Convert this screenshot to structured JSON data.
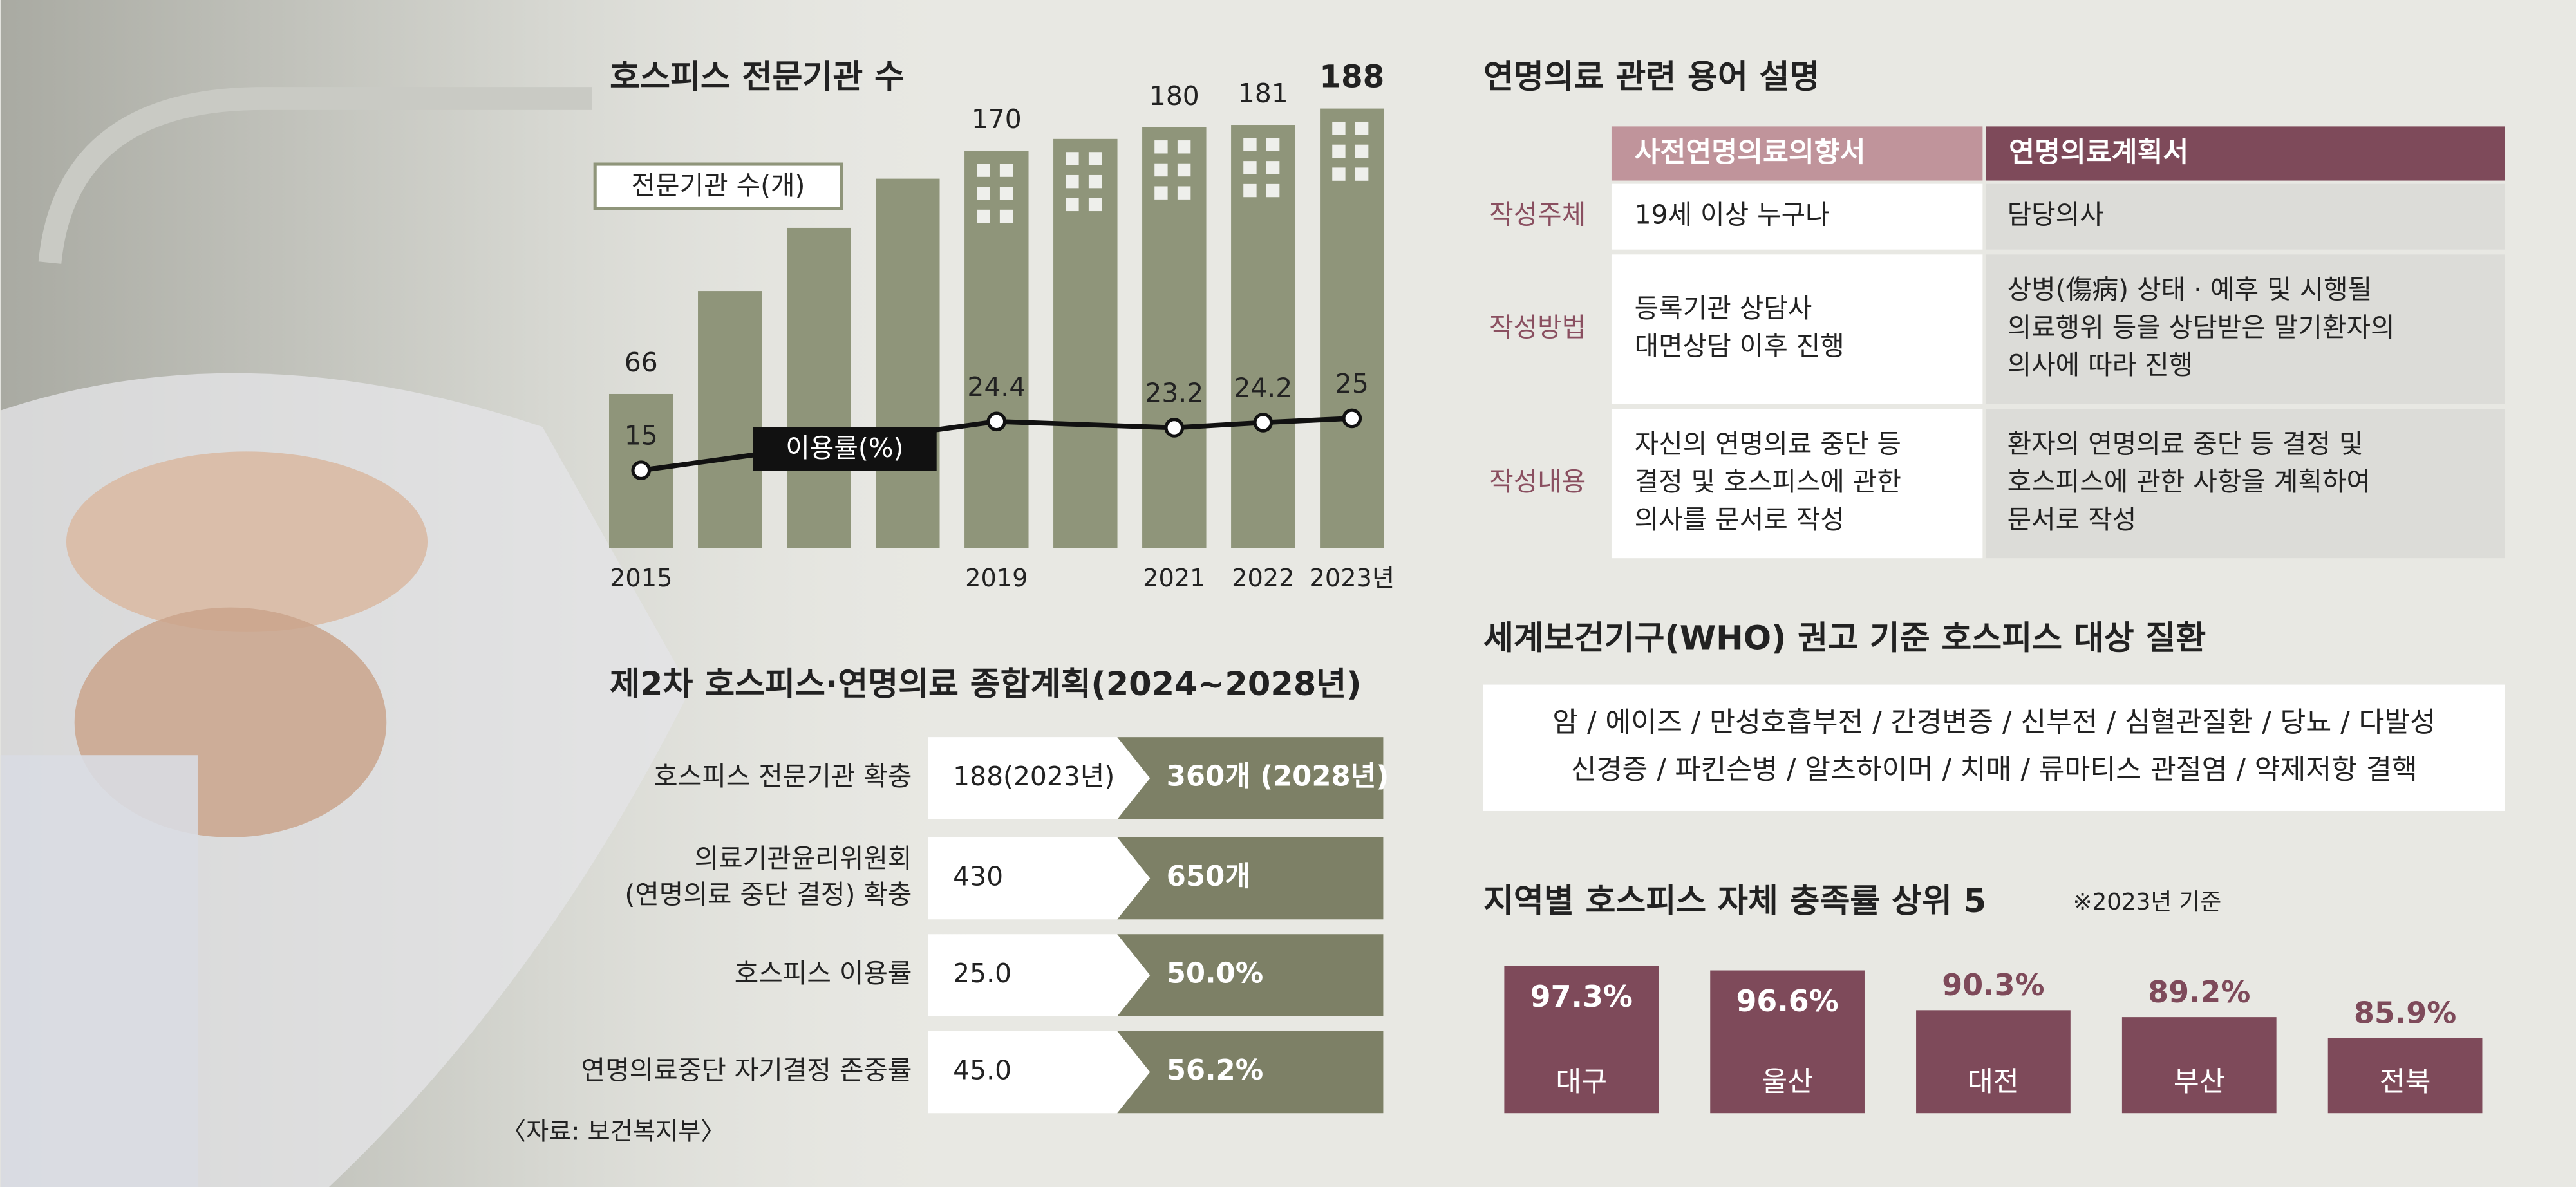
{
  "chart_data": [
    {
      "type": "bar",
      "title": "호스피스 전문기관 수",
      "x": [
        2015,
        2016,
        2017,
        2018,
        2019,
        2020,
        2021,
        2022,
        2023
      ],
      "xlim": [
        2014.5,
        2023.5
      ],
      "xticks": [
        2015,
        2019,
        2021,
        2022,
        {
          "value": 2023,
          "label": "2023년"
        }
      ],
      "ylim": [
        0,
        200
      ],
      "y2lim": [
        0,
        90
      ],
      "series": [
        {
          "name": "전문기관 수(개)",
          "color": "#8f957a",
          "values": [
            66,
            110,
            137,
            158,
            170,
            175,
            180,
            181,
            188
          ],
          "value_labels": [
            "66",
            null,
            null,
            null,
            "170",
            null,
            "180",
            "181",
            "188"
          ]
        },
        {
          "name": "이용률(%)",
          "type": "line",
          "axis": "y2",
          "color": "#111111",
          "x": [
            2015,
            2019,
            2021,
            2022,
            2023
          ],
          "values": [
            15,
            24.4,
            23.2,
            24.2,
            25
          ]
        }
      ]
    },
    {
      "type": "bar",
      "title": "지역별 호스피스 자체 충족률 상위 5",
      "subtitle": "※2023년 기준",
      "categories": [
        "대구",
        "울산",
        "대전",
        "부산",
        "전북"
      ],
      "values": [
        97.3,
        96.6,
        90.3,
        89.2,
        85.9
      ],
      "value_labels": [
        "97.3%",
        "96.6%",
        "90.3%",
        "89.2%",
        "85.9%"
      ],
      "color": "#7e4a5a",
      "ylim": [
        74,
        100
      ]
    }
  ],
  "plan": {
    "title": "제2차 호스피스·연명의료 종합계획(2024~2028년)",
    "rows": [
      [
        [
          "호스피스 전문기관 확충"
        ],
        "188(2023년)",
        "360개 (2028년)"
      ],
      [
        [
          "의료기관윤리위원회",
          "(연명의료 중단 결정) 확충"
        ],
        "430",
        "650개"
      ],
      [
        [
          "호스피스 이용률"
        ],
        "25.0",
        "50.0%"
      ],
      [
        [
          "연명의료중단 자기결정 존중률"
        ],
        "45.0",
        "56.2%"
      ]
    ],
    "source": "〈자료: 보건복지부〉"
  },
  "terms": {
    "title": "연명의료 관련 용어 설명",
    "headers": [
      "사전연명의료의향서",
      "연명의료계획서"
    ],
    "rows": [
      [
        [
          "작성주체"
        ],
        [
          "19세 이상 누구나"
        ],
        [
          "담당의사"
        ]
      ],
      [
        [
          "작성방법"
        ],
        [
          "등록기관 상담사",
          "대면상담 이후 진행"
        ],
        [
          "상병(傷病) 상태 · 예후 및 시행될",
          "의료행위 등을 상담받은 말기환자의",
          "의사에 따라 진행"
        ]
      ],
      [
        [
          "작성내용"
        ],
        [
          "자신의 연명의료 중단 등",
          "결정 및 호스피스에 관한",
          "의사를 문서로 작성"
        ],
        [
          "환자의 연명의료 중단 등 결정 및",
          "호스피스에 관한 사항을 계획하여",
          "문서로 작성"
        ]
      ]
    ]
  },
  "who": {
    "title": "세계보건기구(WHO) 권고 기준 호스피스 대상 질환",
    "lines": [
      "암 / 에이즈 / 만성호흡부전 / 간경변증 / 신부전 / 심혈관질환 / 당뇨 / 다발성",
      "신경증 / 파킨슨병 / 알츠하이머 / 치매 / 류마티스 관절염 / 약제저항 결핵"
    ]
  }
}
